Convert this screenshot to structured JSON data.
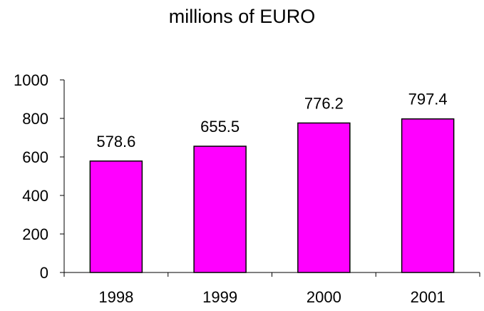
{
  "chart_data": {
    "type": "bar",
    "title": "millions of EURO",
    "categories": [
      "1998",
      "1999",
      "2000",
      "2001"
    ],
    "values": [
      578.6,
      655.5,
      776.2,
      797.4
    ],
    "value_labels": [
      "578.6",
      "655.5",
      "776.2",
      "797.4"
    ],
    "yticks": [
      0,
      200,
      400,
      600,
      800,
      1000
    ],
    "ylim": [
      0,
      1000
    ],
    "xlabel": "",
    "ylabel": "",
    "grid": false,
    "bar_color": "#FF00FF",
    "bar_outline_color": "#000000"
  }
}
